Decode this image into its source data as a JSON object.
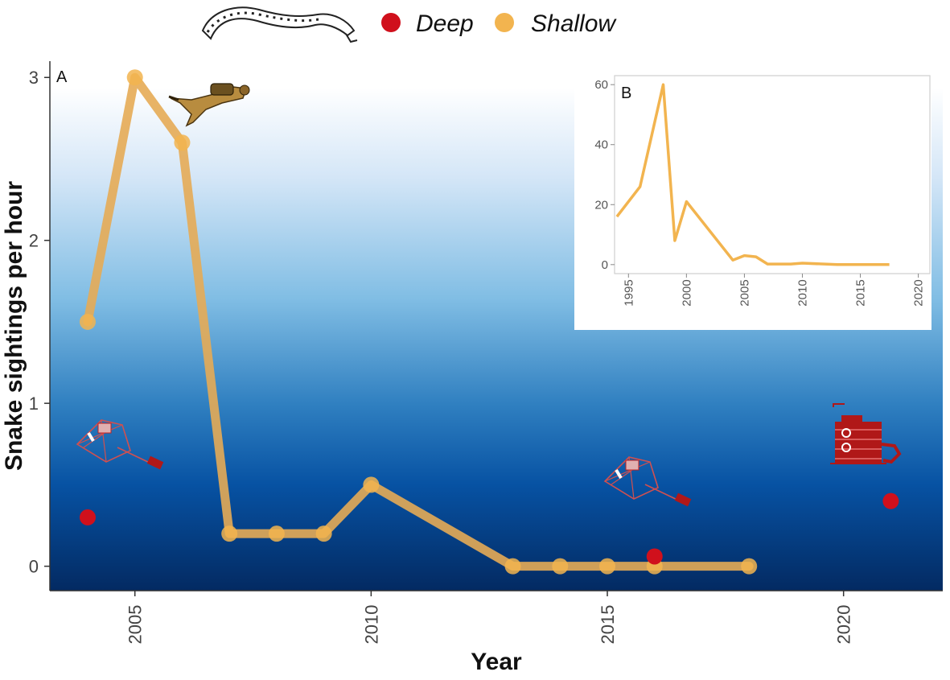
{
  "legend": {
    "deep_label": "Deep",
    "shallow_label": "Shallow",
    "snake_icon": "sea-snake-icon"
  },
  "colors": {
    "deep": "#d0101c",
    "shallow": "#f2b44f",
    "shallow_line": "#e6ab55",
    "panel_top": "#ffffff",
    "panel_mid": "#5aa6d8",
    "panel_bottom": "#06306b"
  },
  "icons": [
    "diver-icon",
    "drop-camera-icon",
    "submersible-icon"
  ],
  "chart_data": [
    {
      "panel": "A",
      "type": "scatter",
      "xlabel": "Year",
      "ylabel": "Snake sightings per hour",
      "xlim": [
        2003.2,
        2022.1
      ],
      "ylim": [
        -0.15,
        3.1
      ],
      "x_ticks": [
        "2005",
        "2010",
        "2015",
        "2020"
      ],
      "y_ticks": [
        "0",
        "1",
        "2",
        "3"
      ],
      "grid": false,
      "legend_position": "top",
      "series": [
        {
          "name": "Shallow",
          "style": "line+points",
          "x": [
            2004,
            2005,
            2006,
            2007,
            2008,
            2009,
            2010,
            2013,
            2014,
            2015,
            2016,
            2018
          ],
          "y": [
            1.5,
            3.0,
            2.6,
            0.2,
            0.2,
            0.2,
            0.5,
            0.0,
            0.0,
            0.0,
            0.0,
            0.0
          ]
        },
        {
          "name": "Deep",
          "style": "points",
          "x": [
            2004,
            2016,
            2021
          ],
          "y": [
            0.3,
            0.06,
            0.4
          ]
        }
      ]
    },
    {
      "panel": "B",
      "type": "line",
      "xlim": [
        1993.8,
        2021
      ],
      "ylim": [
        -3,
        63
      ],
      "x_ticks": [
        "1995",
        "2000",
        "2005",
        "2010",
        "2015",
        "2020"
      ],
      "y_ticks": [
        "0",
        "20",
        "40",
        "60"
      ],
      "series": [
        {
          "x": [
            1994,
            1996,
            1998,
            1999,
            2000,
            2004,
            2005,
            2006,
            2007,
            2008,
            2009,
            2010,
            2013,
            2014,
            2015,
            2016,
            2017.5
          ],
          "y": [
            16,
            26,
            60,
            8,
            21,
            1.5,
            3,
            2.6,
            0.2,
            0.2,
            0.2,
            0.5,
            0,
            0,
            0,
            0,
            0
          ]
        }
      ]
    }
  ]
}
